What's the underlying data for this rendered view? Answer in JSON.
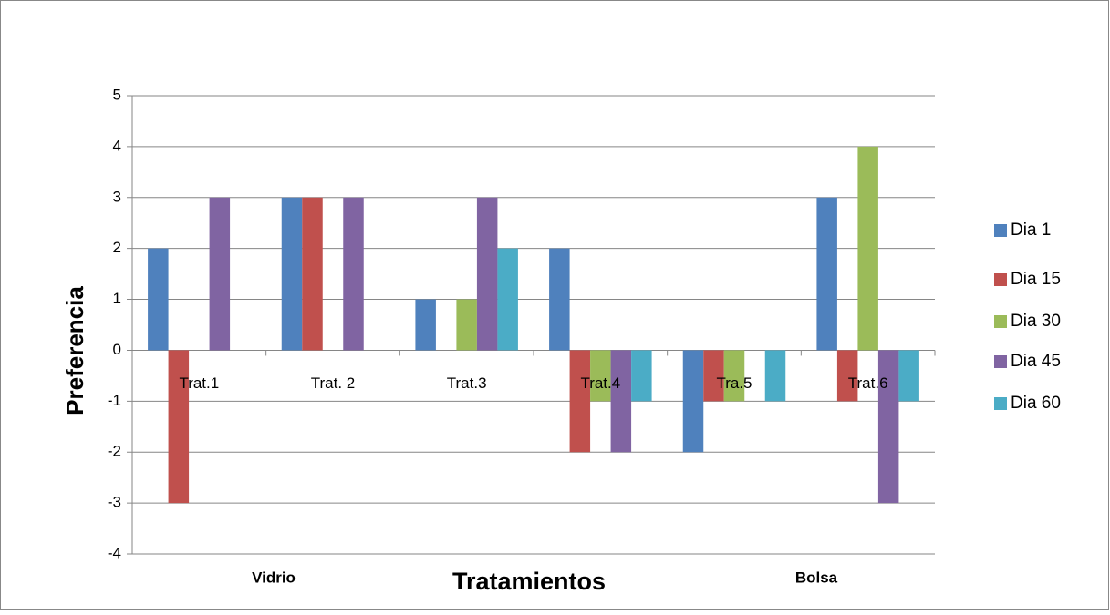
{
  "chart_data": {
    "type": "bar",
    "x_label": "Tratamientos",
    "y_label": "Preferencia",
    "annotations": [
      "Vidrio",
      "Bolsa"
    ],
    "categories": [
      "Trat.1",
      "Trat. 2",
      "Trat.3",
      "Trat.4",
      "Tra.5",
      "Trat.6"
    ],
    "series": [
      {
        "name": "Dia 1",
        "color": "#4f81bd",
        "values": [
          2,
          3,
          1,
          2,
          -2,
          3
        ]
      },
      {
        "name": "Dia 15",
        "color": "#c0504d",
        "values": [
          -3,
          3,
          0,
          -2,
          -1,
          -1
        ]
      },
      {
        "name": "Dia 30",
        "color": "#9bbb59",
        "values": [
          0,
          0,
          1,
          -1,
          -1,
          4
        ]
      },
      {
        "name": "Dia 45",
        "color": "#8064a2",
        "values": [
          3,
          3,
          3,
          -2,
          0,
          -3
        ]
      },
      {
        "name": "Dia 60",
        "color": "#4bacc6",
        "values": [
          0,
          0,
          2,
          -1,
          -1,
          -1
        ]
      }
    ],
    "ylim": [
      -4,
      5
    ],
    "yticks": [
      -4,
      -3,
      -2,
      -1,
      0,
      1,
      2,
      3,
      4,
      5
    ],
    "grid": true,
    "legend": "right"
  }
}
